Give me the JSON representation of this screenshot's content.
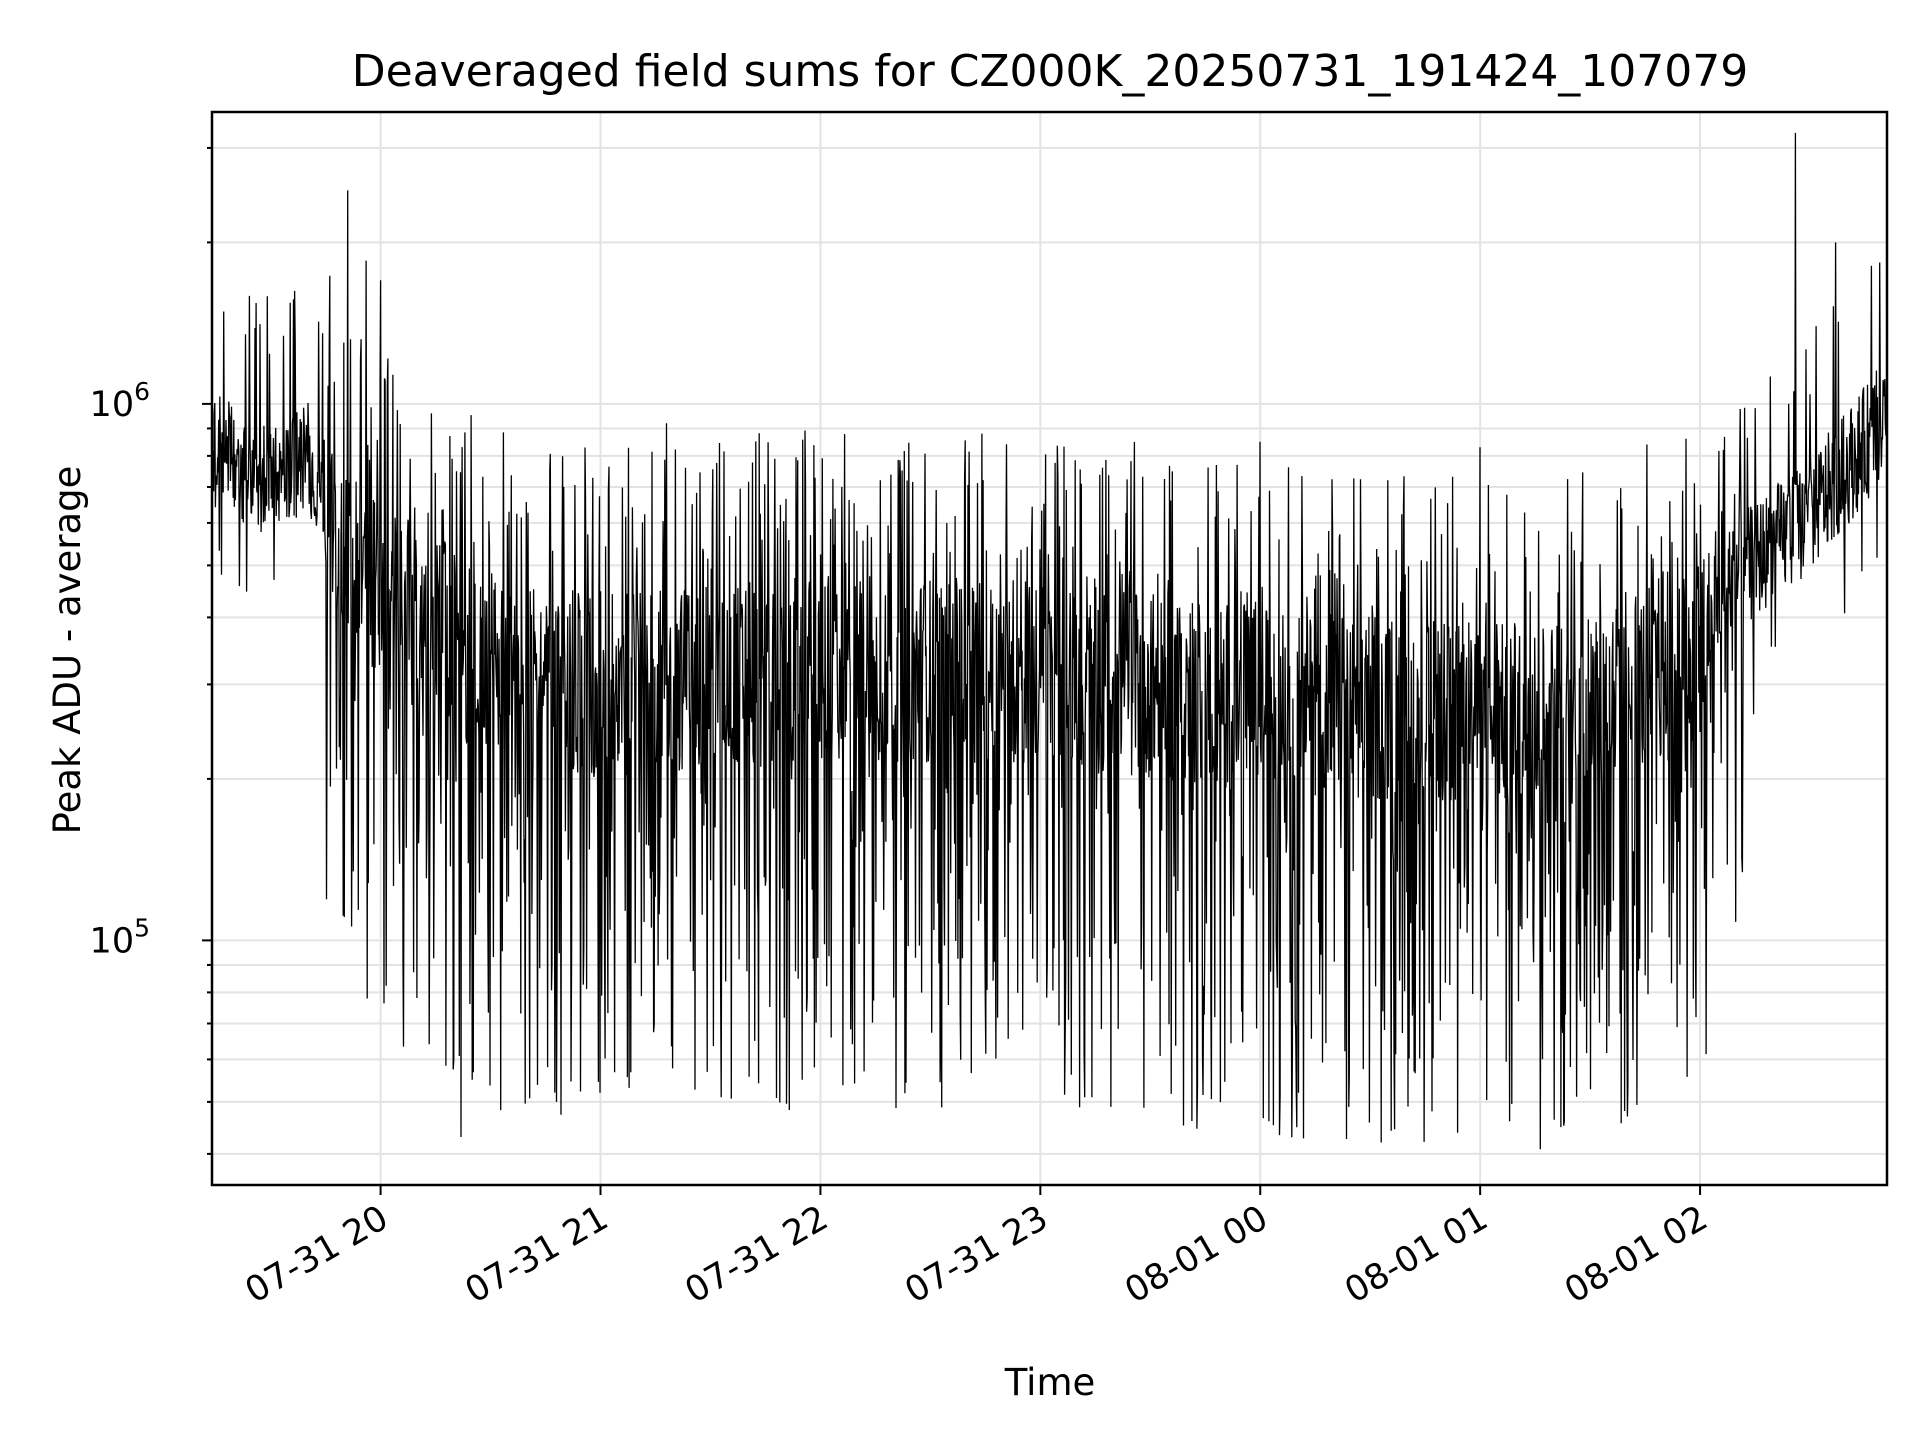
{
  "chart_data": {
    "type": "line",
    "title": "Deaveraged field sums for CZ000K_20250731_191424_107079",
    "xlabel": "Time",
    "ylabel": "Peak ADU - average",
    "yscale": "log",
    "ylim": [
      35000,
      3500000
    ],
    "xlim": [
      "2025-07-31 19:14",
      "2025-08-01 02:51"
    ],
    "grid": true,
    "x_ticks": [
      {
        "t": "2025-07-31 20:00",
        "label": "07-31 20"
      },
      {
        "t": "2025-07-31 21:00",
        "label": "07-31 21"
      },
      {
        "t": "2025-07-31 22:00",
        "label": "07-31 22"
      },
      {
        "t": "2025-07-31 23:00",
        "label": "07-31 23"
      },
      {
        "t": "2025-08-01 00:00",
        "label": "08-01 00"
      },
      {
        "t": "2025-08-01 01:00",
        "label": "08-01 01"
      },
      {
        "t": "2025-08-01 02:00",
        "label": "08-01 02"
      }
    ],
    "y_ticks": [
      {
        "value": 100000,
        "base": "10",
        "exp": "5"
      },
      {
        "value": 1000000,
        "base": "10",
        "exp": "6"
      }
    ],
    "series": [
      {
        "color": "#000000",
        "baseline": {
          "x": [
            "2025-07-31 19:14",
            "2025-07-31 19:30",
            "2025-07-31 19:40",
            "2025-07-31 19:50",
            "2025-07-31 20:00",
            "2025-07-31 20:15",
            "2025-07-31 20:30",
            "2025-07-31 21:00",
            "2025-07-31 21:30",
            "2025-07-31 22:00",
            "2025-07-31 22:30",
            "2025-07-31 23:00",
            "2025-07-31 23:30",
            "2025-08-01 00:00",
            "2025-08-01 00:30",
            "2025-08-01 01:00",
            "2025-08-01 01:30",
            "2025-08-01 02:00",
            "2025-08-01 02:10",
            "2025-08-01 02:30",
            "2025-08-01 02:51"
          ],
          "y": [
            820000,
            720000,
            800000,
            550000,
            440000,
            380000,
            320000,
            300000,
            310000,
            320000,
            320000,
            310000,
            300000,
            280000,
            270000,
            260000,
            270000,
            340000,
            480000,
            620000,
            950000
          ]
        },
        "spikes": [
          {
            "t": "2025-07-31 19:51",
            "y": 2500000
          },
          {
            "t": "2025-07-31 19:56",
            "y": 1850000
          },
          {
            "t": "2025-07-31 20:00",
            "y": 1700000
          },
          {
            "t": "2025-07-31 20:20",
            "y": 60000
          },
          {
            "t": "2025-07-31 20:22",
            "y": 43000
          },
          {
            "t": "2025-07-31 20:25",
            "y": 55000
          },
          {
            "t": "2025-07-31 20:48",
            "y": 50000
          },
          {
            "t": "2025-07-31 21:18",
            "y": 920000
          },
          {
            "t": "2025-07-31 21:33",
            "y": 51000
          },
          {
            "t": "2025-07-31 21:55",
            "y": 55000
          },
          {
            "t": "2025-07-31 22:12",
            "y": 57000
          },
          {
            "t": "2025-08-01 00:33",
            "y": 42000
          },
          {
            "t": "2025-08-01 00:00",
            "y": 850000
          },
          {
            "t": "2025-08-01 01:00",
            "y": 830000
          },
          {
            "t": "2025-08-01 01:08",
            "y": 46000
          },
          {
            "t": "2025-08-01 01:23",
            "y": 46000
          },
          {
            "t": "2025-08-01 02:26",
            "y": 3200000
          },
          {
            "t": "2025-08-01 02:37",
            "y": 2000000
          }
        ]
      }
    ]
  }
}
